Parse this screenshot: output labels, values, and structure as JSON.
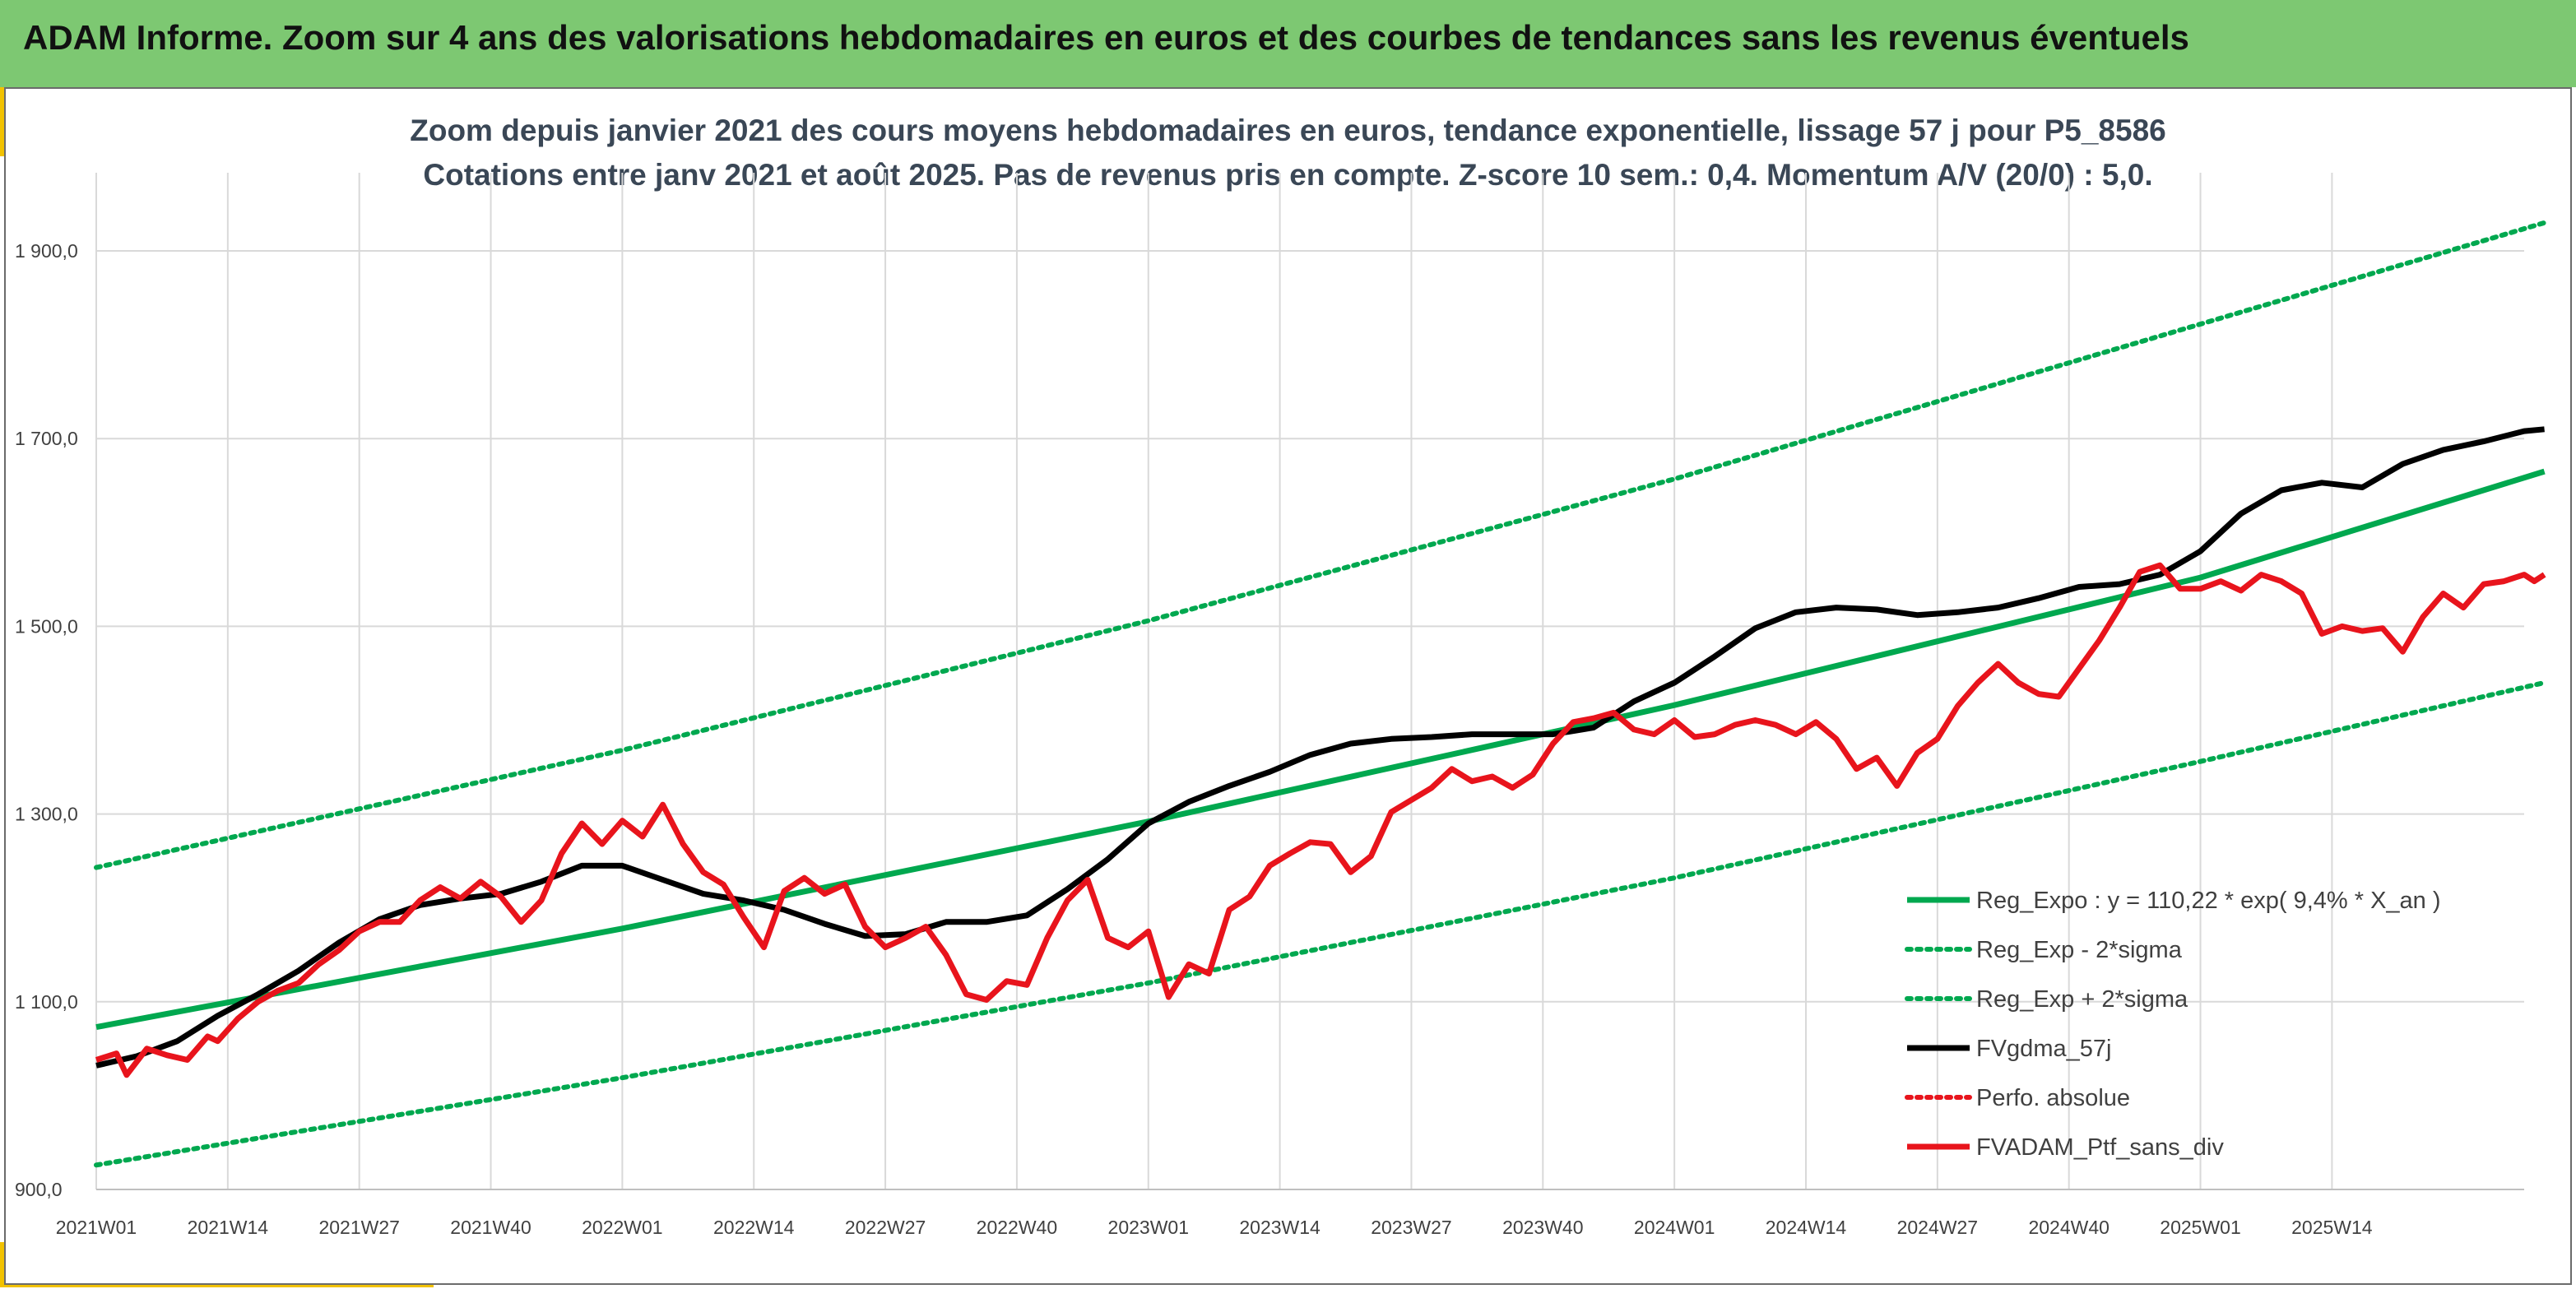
{
  "header": {
    "title": "ADAM Informe. Zoom sur 4 ans des valorisations hebdomadaires en euros et des courbes de tendances sans les revenus éventuels"
  },
  "colors": {
    "banner": "#7dc872",
    "accent": "#f2c200",
    "trend": "#00a84f",
    "smooth": "#000000",
    "price": "#e8141c",
    "title_text": "#3a4756"
  },
  "chart_data": {
    "type": "line",
    "title": "Zoom depuis janvier 2021 des cours moyens hebdomadaires en euros, tendance exponentielle, lissage 57 j pour P5_8586",
    "subtitle": "Cotations entre janv 2021 et août 2025. Pas de revenus pris en compte. Z-score 10 sem.: 0,4. Momentum A/V (20/0) : 5,0.",
    "xlabel": "",
    "ylabel": "",
    "ylim": [
      900,
      1960
    ],
    "yticks": [
      900,
      1100,
      1300,
      1500,
      1700,
      1900
    ],
    "ytick_labels": [
      "900,0",
      "1 100,0",
      "1 300,0",
      "1 500,0",
      "1 700,0",
      "1 900,0"
    ],
    "xlim": [
      0,
      240
    ],
    "xticks": [
      0,
      13,
      26,
      39,
      52,
      65,
      78,
      91,
      104,
      117,
      130,
      143,
      156,
      169,
      182,
      195,
      208,
      221
    ],
    "xtick_labels": [
      "2021W01",
      "2021W14",
      "2021W27",
      "2021W40",
      "2022W01",
      "2022W14",
      "2022W27",
      "2022W40",
      "2023W01",
      "2023W14",
      "2023W27",
      "2023W40",
      "2024W01",
      "2024W14",
      "2024W27",
      "2024W40",
      "2025W01",
      "2025W14"
    ],
    "grid": "both",
    "legend_position": "bottom-right",
    "legend_labels": [
      "Reg_Expo : y = 110,22 * exp( 9,4% *  X_an )",
      "Reg_Exp - 2*sigma",
      "Reg_Exp + 2*sigma",
      "FVgdma_57j",
      "Perfo. absolue",
      "FVADAM_Ptf_sans_div"
    ],
    "series": [
      {
        "name": "Reg_Expo : y = 110,22 * exp( 9,4% *  X_an )",
        "style": "solid",
        "color": "#00a84f",
        "points": [
          [
            0,
            1073
          ],
          [
            52,
            1178
          ],
          [
            104,
            1292
          ],
          [
            156,
            1416
          ],
          [
            208,
            1552
          ],
          [
            242,
            1665
          ]
        ]
      },
      {
        "name": "Reg_Exp - 2*sigma",
        "style": "dotted",
        "color": "#00a84f",
        "points": [
          [
            0,
            926
          ],
          [
            52,
            1019
          ],
          [
            104,
            1120
          ],
          [
            156,
            1232
          ],
          [
            208,
            1356
          ],
          [
            242,
            1440
          ]
        ]
      },
      {
        "name": "Reg_Exp + 2*sigma",
        "style": "dotted",
        "color": "#00a84f",
        "points": [
          [
            0,
            1243
          ],
          [
            52,
            1368
          ],
          [
            104,
            1506
          ],
          [
            156,
            1657
          ],
          [
            208,
            1822
          ],
          [
            242,
            1930
          ]
        ]
      },
      {
        "name": "FVgdma_57j",
        "style": "solid",
        "color": "#000000",
        "points": [
          [
            0,
            1032
          ],
          [
            4,
            1042
          ],
          [
            8,
            1058
          ],
          [
            12,
            1085
          ],
          [
            16,
            1108
          ],
          [
            20,
            1133
          ],
          [
            24,
            1163
          ],
          [
            28,
            1188
          ],
          [
            32,
            1203
          ],
          [
            36,
            1210
          ],
          [
            40,
            1215
          ],
          [
            44,
            1228
          ],
          [
            48,
            1245
          ],
          [
            52,
            1245
          ],
          [
            56,
            1230
          ],
          [
            60,
            1215
          ],
          [
            64,
            1208
          ],
          [
            68,
            1198
          ],
          [
            72,
            1183
          ],
          [
            76,
            1170
          ],
          [
            80,
            1172
          ],
          [
            84,
            1185
          ],
          [
            88,
            1185
          ],
          [
            92,
            1192
          ],
          [
            96,
            1220
          ],
          [
            100,
            1252
          ],
          [
            104,
            1290
          ],
          [
            108,
            1313
          ],
          [
            112,
            1330
          ],
          [
            116,
            1345
          ],
          [
            120,
            1363
          ],
          [
            124,
            1375
          ],
          [
            128,
            1380
          ],
          [
            132,
            1382
          ],
          [
            136,
            1385
          ],
          [
            140,
            1385
          ],
          [
            144,
            1385
          ],
          [
            148,
            1392
          ],
          [
            152,
            1420
          ],
          [
            156,
            1440
          ],
          [
            160,
            1468
          ],
          [
            164,
            1498
          ],
          [
            168,
            1515
          ],
          [
            172,
            1520
          ],
          [
            176,
            1518
          ],
          [
            180,
            1512
          ],
          [
            184,
            1515
          ],
          [
            188,
            1520
          ],
          [
            192,
            1530
          ],
          [
            196,
            1542
          ],
          [
            200,
            1545
          ],
          [
            204,
            1555
          ],
          [
            208,
            1580
          ],
          [
            212,
            1620
          ],
          [
            216,
            1645
          ],
          [
            220,
            1653
          ],
          [
            224,
            1648
          ],
          [
            228,
            1673
          ],
          [
            232,
            1688
          ],
          [
            236,
            1697
          ],
          [
            240,
            1708
          ],
          [
            242,
            1710
          ]
        ]
      },
      {
        "name": "FVADAM_Ptf_sans_div",
        "style": "solid",
        "color": "#e8141c",
        "points": [
          [
            0,
            1038
          ],
          [
            2,
            1045
          ],
          [
            3,
            1022
          ],
          [
            5,
            1050
          ],
          [
            7,
            1043
          ],
          [
            9,
            1038
          ],
          [
            11,
            1063
          ],
          [
            12,
            1058
          ],
          [
            14,
            1082
          ],
          [
            16,
            1100
          ],
          [
            18,
            1112
          ],
          [
            20,
            1120
          ],
          [
            22,
            1140
          ],
          [
            24,
            1155
          ],
          [
            26,
            1175
          ],
          [
            28,
            1185
          ],
          [
            30,
            1185
          ],
          [
            32,
            1208
          ],
          [
            34,
            1222
          ],
          [
            36,
            1210
          ],
          [
            38,
            1228
          ],
          [
            40,
            1212
          ],
          [
            42,
            1185
          ],
          [
            44,
            1208
          ],
          [
            46,
            1258
          ],
          [
            48,
            1290
          ],
          [
            50,
            1268
          ],
          [
            52,
            1293
          ],
          [
            54,
            1276
          ],
          [
            56,
            1310
          ],
          [
            58,
            1268
          ],
          [
            60,
            1238
          ],
          [
            62,
            1225
          ],
          [
            64,
            1190
          ],
          [
            66,
            1158
          ],
          [
            68,
            1218
          ],
          [
            70,
            1232
          ],
          [
            72,
            1215
          ],
          [
            74,
            1225
          ],
          [
            76,
            1180
          ],
          [
            78,
            1158
          ],
          [
            80,
            1168
          ],
          [
            82,
            1180
          ],
          [
            84,
            1150
          ],
          [
            86,
            1108
          ],
          [
            88,
            1102
          ],
          [
            90,
            1122
          ],
          [
            92,
            1118
          ],
          [
            94,
            1168
          ],
          [
            96,
            1208
          ],
          [
            98,
            1230
          ],
          [
            100,
            1168
          ],
          [
            102,
            1158
          ],
          [
            104,
            1175
          ],
          [
            106,
            1105
          ],
          [
            108,
            1140
          ],
          [
            110,
            1130
          ],
          [
            112,
            1198
          ],
          [
            114,
            1212
          ],
          [
            116,
            1245
          ],
          [
            118,
            1258
          ],
          [
            120,
            1270
          ],
          [
            122,
            1268
          ],
          [
            124,
            1238
          ],
          [
            126,
            1255
          ],
          [
            128,
            1302
          ],
          [
            130,
            1315
          ],
          [
            132,
            1328
          ],
          [
            134,
            1348
          ],
          [
            136,
            1335
          ],
          [
            138,
            1340
          ],
          [
            140,
            1328
          ],
          [
            142,
            1342
          ],
          [
            144,
            1375
          ],
          [
            146,
            1398
          ],
          [
            148,
            1402
          ],
          [
            150,
            1408
          ],
          [
            152,
            1390
          ],
          [
            154,
            1385
          ],
          [
            156,
            1400
          ],
          [
            158,
            1382
          ],
          [
            160,
            1385
          ],
          [
            162,
            1395
          ],
          [
            164,
            1400
          ],
          [
            166,
            1395
          ],
          [
            168,
            1385
          ],
          [
            170,
            1398
          ],
          [
            172,
            1380
          ],
          [
            174,
            1348
          ],
          [
            176,
            1360
          ],
          [
            178,
            1330
          ],
          [
            180,
            1365
          ],
          [
            182,
            1380
          ],
          [
            184,
            1415
          ],
          [
            186,
            1440
          ],
          [
            188,
            1460
          ],
          [
            190,
            1440
          ],
          [
            192,
            1428
          ],
          [
            194,
            1425
          ],
          [
            196,
            1455
          ],
          [
            198,
            1485
          ],
          [
            200,
            1520
          ],
          [
            202,
            1558
          ],
          [
            204,
            1565
          ],
          [
            206,
            1540
          ],
          [
            208,
            1540
          ],
          [
            210,
            1548
          ],
          [
            212,
            1538
          ],
          [
            214,
            1555
          ],
          [
            216,
            1548
          ],
          [
            218,
            1535
          ],
          [
            220,
            1492
          ],
          [
            222,
            1500
          ],
          [
            224,
            1495
          ],
          [
            226,
            1498
          ],
          [
            228,
            1473
          ],
          [
            230,
            1510
          ],
          [
            232,
            1535
          ],
          [
            234,
            1520
          ],
          [
            236,
            1545
          ],
          [
            238,
            1548
          ],
          [
            240,
            1555
          ],
          [
            241,
            1548
          ],
          [
            242,
            1555
          ]
        ]
      }
    ],
    "perfo_absolue": {
      "name": "Perfo. absolue",
      "style": "dotted",
      "color": "#e8141c"
    }
  }
}
